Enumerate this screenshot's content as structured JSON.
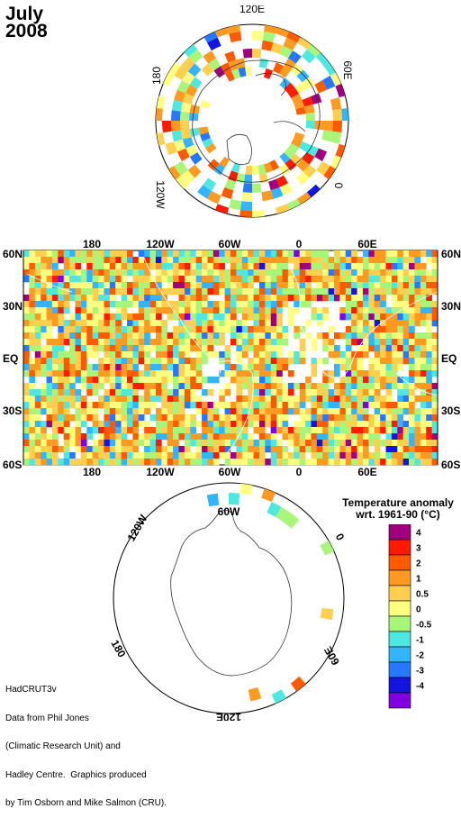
{
  "title": {
    "month": "July",
    "year": "2008"
  },
  "north_polar_labels": {
    "top": "120E",
    "left": "180",
    "right": "60E",
    "bottom_left": "120W",
    "bottom_right": "0"
  },
  "map_labels": {
    "lat_left": [
      "60N",
      "30N",
      "EQ",
      "30S",
      "60S"
    ],
    "lat_right": [
      "60N",
      "30N",
      "EQ",
      "30S",
      "60S"
    ],
    "lon_top": [
      "180",
      "120W",
      "60W",
      "0",
      "60E"
    ],
    "lon_bottom": [
      "180",
      "120W",
      "60W",
      "0",
      "60E"
    ]
  },
  "south_polar_labels": {
    "top": "60W",
    "left_top": "120W",
    "right_top": "0",
    "left_bottom": "180",
    "right_bottom": "60E",
    "bottom": "120E"
  },
  "legend": {
    "title_line1": "Temperature anomaly",
    "title_line2": "wrt. 1961-90  (°C)",
    "levels": [
      {
        "label": "4",
        "color": "#a0007e"
      },
      {
        "label": "3",
        "color": "#ff1a00"
      },
      {
        "label": "2",
        "color": "#ff5a00"
      },
      {
        "label": "1",
        "color": "#ff9a20"
      },
      {
        "label": "0.5",
        "color": "#ffcf50"
      },
      {
        "label": "0",
        "color": "#ffff80"
      },
      {
        "label": "-0.5",
        "color": "#a8f57a"
      },
      {
        "label": "-1",
        "color": "#4ee8e0"
      },
      {
        "label": "-2",
        "color": "#32b4ff"
      },
      {
        "label": "-3",
        "color": "#2878ff"
      },
      {
        "label": "-4",
        "color": "#1414e0"
      },
      {
        "label": "",
        "color": "#8000e0"
      }
    ]
  },
  "credit": {
    "line1": "HadCRUT3v",
    "line2": "Data from Phil Jones",
    "line3": "(Climatic Research Unit) and",
    "line4": "Hadley Centre.  Graphics produced",
    "line5": "by Tim Osborn and Mike Salmon (CRU)."
  }
}
